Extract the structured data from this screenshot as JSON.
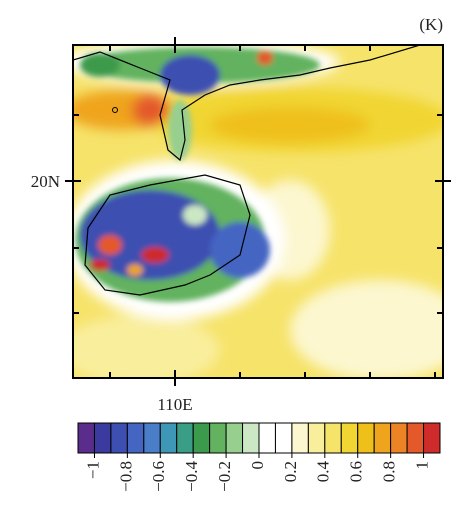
{
  "map": {
    "unit": "(K)",
    "y_label": "20N",
    "x_label": "110E",
    "colorbar": {
      "lim": [
        -1.1,
        1.1
      ],
      "colors": [
        "#5a2c8c",
        "#3b3a9e",
        "#3d4fb0",
        "#4565c2",
        "#4a7ec9",
        "#3f97b8",
        "#3a9e86",
        "#3c9a4c",
        "#62b25f",
        "#97cf8f",
        "#cbe7c3",
        "#ffffff",
        "#ffffff",
        "#fcf7cf",
        "#f9ee9c",
        "#f6e36a",
        "#f1d533",
        "#efc01a",
        "#efa41d",
        "#ec8426",
        "#e4592a",
        "#cf2b2a"
      ],
      "ticks": [
        {
          "value": -1,
          "label": "−1"
        },
        {
          "value": -0.8,
          "label": "−0.8"
        },
        {
          "value": -0.6,
          "label": "−0.6"
        },
        {
          "value": -0.4,
          "label": "−0.4"
        },
        {
          "value": -0.2,
          "label": "−0.2"
        },
        0,
        0.2,
        0.4,
        0.6,
        0.8,
        1
      ]
    }
  }
}
